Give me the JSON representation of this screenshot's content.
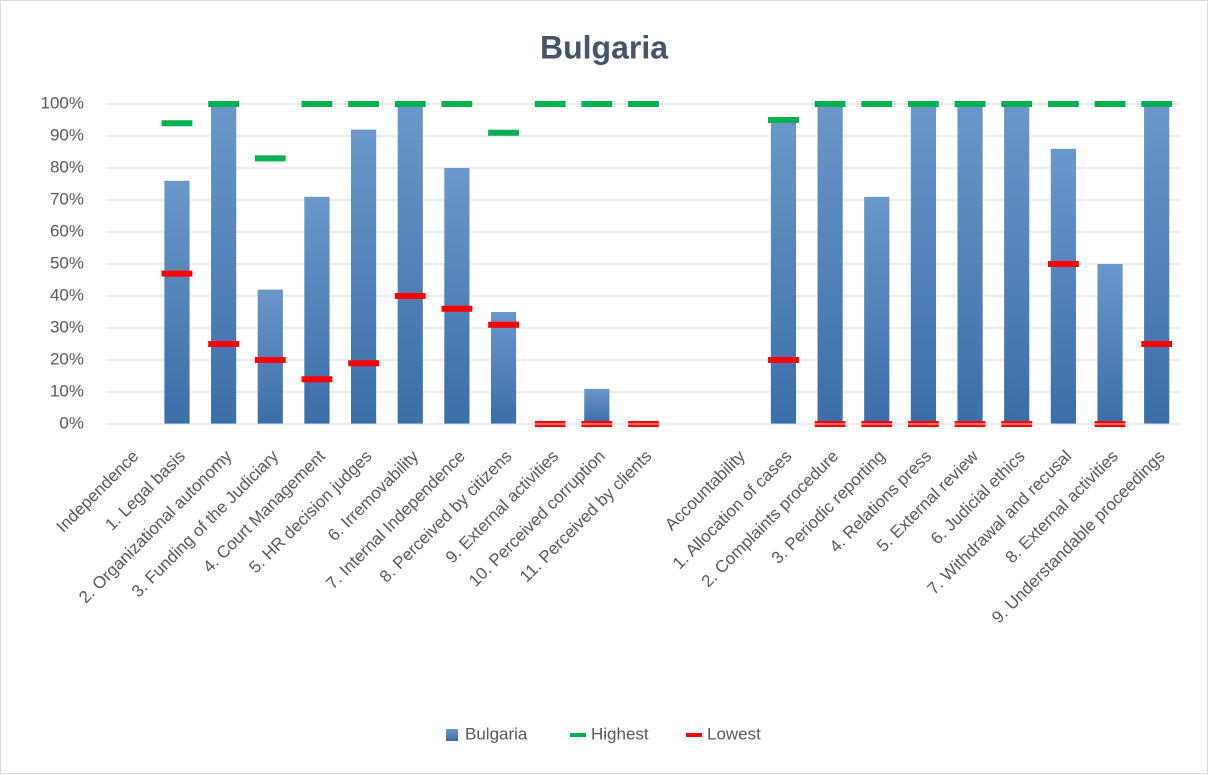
{
  "chart_data": {
    "type": "bar",
    "title": "Bulgaria",
    "categories": [
      "Independence",
      "1. Legal basis",
      "2. Organizational autonomy",
      "3. Funding of the Judiciary",
      "4. Court Management",
      "5. HR decision judges",
      "6. Irremovability",
      "7. Internal Independence",
      "8. Perceived by citizens",
      "9. External activities",
      "10. Perceived corruption",
      "11. Perceived by clients",
      null,
      "Accountability",
      "1. Allocation of cases",
      "2. Complaints procedure",
      "3. Periodic reporting",
      "4. Relations press",
      "5. External review",
      "6. Judicial ethics",
      "7. Withdrawal and recusal",
      "8. External activities",
      "9. Understandable proceedings"
    ],
    "series": [
      {
        "name": "Bulgaria",
        "color": "#4a7ebb",
        "values": [
          null,
          76,
          100,
          42,
          71,
          92,
          100,
          80,
          35,
          0,
          11,
          0,
          null,
          null,
          95,
          100,
          71,
          100,
          100,
          100,
          86,
          50,
          100
        ]
      },
      {
        "name": "Highest",
        "color": "#00b050",
        "values": [
          null,
          94,
          100,
          83,
          100,
          100,
          100,
          100,
          91,
          100,
          100,
          100,
          null,
          null,
          95,
          100,
          100,
          100,
          100,
          100,
          100,
          100,
          100
        ]
      },
      {
        "name": "Lowest",
        "color": "#ff0000",
        "values": [
          null,
          47,
          25,
          20,
          14,
          19,
          40,
          36,
          31,
          0,
          0,
          0,
          null,
          null,
          20,
          0,
          0,
          0,
          0,
          0,
          50,
          0,
          25
        ]
      }
    ],
    "ylim": [
      0,
      100
    ],
    "yticks": [
      {
        "value": 0,
        "label": "0%"
      },
      {
        "value": 10,
        "label": "10%"
      },
      {
        "value": 20,
        "label": "20%"
      },
      {
        "value": 30,
        "label": "30%"
      },
      {
        "value": 40,
        "label": "40%"
      },
      {
        "value": 50,
        "label": "50%"
      },
      {
        "value": 60,
        "label": "60%"
      },
      {
        "value": 70,
        "label": "70%"
      },
      {
        "value": 80,
        "label": "80%"
      },
      {
        "value": 90,
        "label": "90%"
      },
      {
        "value": 100,
        "label": "100%"
      }
    ],
    "grid": true,
    "legend": "bottom"
  }
}
